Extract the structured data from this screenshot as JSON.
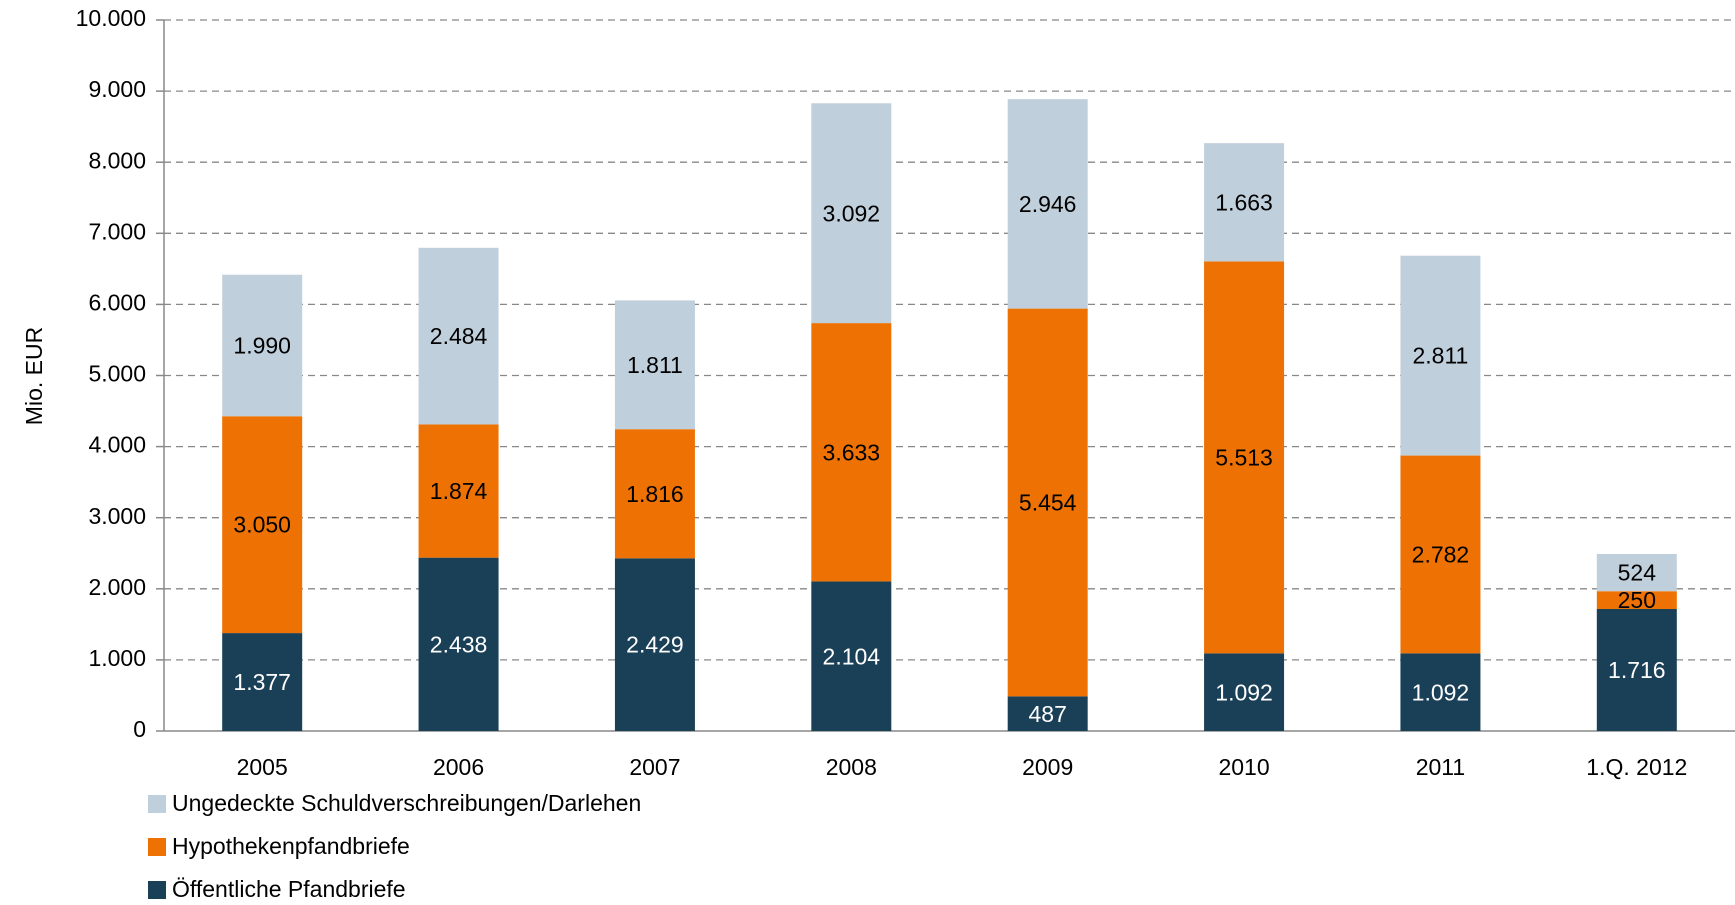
{
  "chart_data": {
    "type": "stacked_bar",
    "y_label": "Mio. EUR",
    "categories": [
      "2005",
      "2006",
      "2007",
      "2008",
      "2009",
      "2010",
      "2011",
      "1.Q. 2012"
    ],
    "series": [
      {
        "name": "Öffentliche Pfandbriefe",
        "color": "#1a4058",
        "values": [
          1377,
          2438,
          2429,
          2104,
          487,
          1092,
          1092,
          1716
        ],
        "value_labels": [
          "1.377",
          "2.438",
          "2.429",
          "2.104",
          "487",
          "1.092",
          "1.092",
          "1.716"
        ]
      },
      {
        "name": "Hypothekenpfandbriefe",
        "color": "#ee7203",
        "values": [
          3050,
          1874,
          1816,
          3633,
          5454,
          5513,
          2782,
          250
        ],
        "value_labels": [
          "3.050",
          "1.874",
          "1.816",
          "3.633",
          "5.454",
          "5.513",
          "2.782",
          "250"
        ]
      },
      {
        "name": "Ungedeckte Schuldverschreibungen/Darlehen",
        "color": "#c0cfdc",
        "values": [
          1990,
          2484,
          1811,
          3092,
          2946,
          1663,
          2811,
          524
        ],
        "value_labels": [
          "1.990",
          "2.484",
          "1.811",
          "3.092",
          "2.946",
          "1.663",
          "2.811",
          "524"
        ]
      }
    ],
    "ylim": [
      0,
      10000
    ],
    "yticks": [
      0,
      {
        "value": 1000,
        "label": "1.000"
      },
      {
        "value": 2000,
        "label": "2.000"
      },
      {
        "value": 3000,
        "label": "3.000"
      },
      {
        "value": 4000,
        "label": "4.000"
      },
      {
        "value": 5000,
        "label": "5.000"
      },
      {
        "value": 6000,
        "label": "6.000"
      },
      {
        "value": 7000,
        "label": "7.000"
      },
      {
        "value": 8000,
        "label": "8.000"
      },
      {
        "value": 9000,
        "label": "9.000"
      },
      {
        "value": 10000,
        "label": "10.000"
      }
    ],
    "grid": true
  }
}
